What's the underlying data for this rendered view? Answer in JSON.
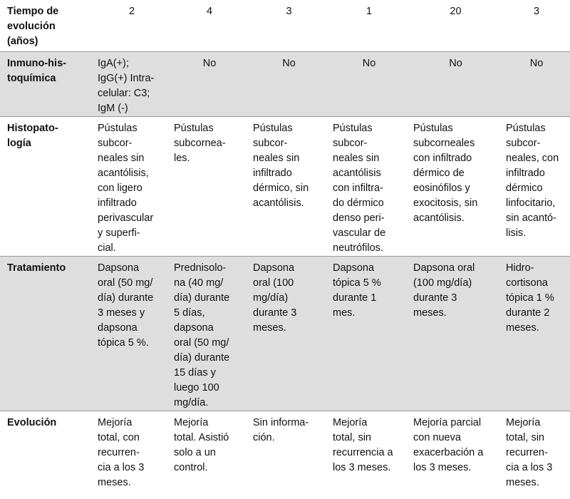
{
  "table": {
    "rows": [
      [
        "Tiempo de\nevolución\n(años)",
        "2",
        "4",
        "3",
        "1",
        "20",
        "3"
      ],
      [
        "Inmuno-his-\ntoquímica",
        "IgA(+);\nIgG(+) Intra-\ncelular: C3;\nIgM (-)",
        "No",
        "No",
        "No",
        "No",
        "No"
      ],
      [
        "Histopato-\nlogía",
        "Pústulas\nsubcor-\nneales sin\nacantólisis,\ncon ligero\ninfiltrado\nperivascular\ny superfi-\ncial.",
        "Pústulas\nsubcornea-\nles.",
        "Pústulas\nsubcor-\nneales sin\ninfiltrado\ndérmico, sin\nacantólisis.",
        "Pústulas\nsubcor-\nneales sin\nacantólisis\ncon infiltra-\ndo dérmico\ndenso peri-\nvascular de\nneutrófilos.",
        "Pústulas\nsubcorneales\ncon infiltrado\ndérmico de\neosinófilos y\nexocitosis, sin\nacantólisis.",
        "Pústulas\nsubcor-\nneales, con\ninfiltrado\ndérmico\nlinfocitario,\nsin acantó-\nlisis."
      ],
      [
        "Tratamiento",
        "Dapsona\noral (50 mg/\ndía) durante\n3 meses y\ndapsona\ntópica 5 %.",
        "Prednisolo-\nna (40 mg/\ndía) durante\n5 días,\ndapsona\noral (50 mg/\ndía) durante\n15 días y\nluego 100\nmg/día.",
        "Dapsona\noral (100\nmg/día)\ndurante 3\nmeses.",
        "Dapsona\ntópica 5 %\ndurante 1\nmes.",
        "Dapsona oral\n(100 mg/día)\ndurante 3\nmeses.",
        "Hidro-\ncortisona\ntópica 1 %\ndurante 2\nmeses."
      ],
      [
        "Evolución",
        "Mejoría\ntotal, con\nrecurren-\ncia a los 3\nmeses.",
        "Mejoría\ntotal. Asistió\nsolo a un\ncontrol.",
        "Sin informa-\nción.",
        "Mejoría\ntotal, sin\nrecurrencia a\nlos 3 meses.",
        "Mejoría parcial\ncon nueva\nexacerbación a\nlos 3 meses.",
        "Mejoría\ntotal, sin\nrecurren-\ncia a los 3\nmeses."
      ]
    ]
  }
}
